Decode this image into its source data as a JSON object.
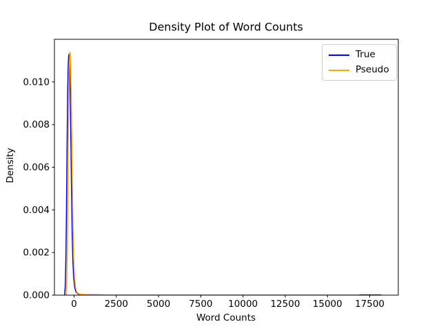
{
  "figure": {
    "background": "#ffffff",
    "axis_color": "#000000",
    "text_color": "#000000"
  },
  "chart_data": {
    "type": "line",
    "title": "Density Plot of Word Counts",
    "xlabel": "Word Counts",
    "ylabel": "Density",
    "xlim": [
      -1160,
      19190
    ],
    "ylim": [
      0,
      0.012
    ],
    "grid": false,
    "legend": {
      "position": "upper right",
      "border_color": "#cccccc",
      "background": "#ffffff",
      "entries": [
        "True",
        "Pseudo"
      ]
    },
    "xticks": {
      "values": [
        0,
        2500,
        5000,
        7500,
        10000,
        12500,
        15000,
        17500
      ],
      "labels": [
        "0",
        "2500",
        "5000",
        "7500",
        "10000",
        "12500",
        "15000",
        "17500"
      ]
    },
    "yticks": {
      "values": [
        0,
        0.002,
        0.004,
        0.006,
        0.008,
        0.01
      ],
      "labels": [
        "0.000",
        "0.002",
        "0.004",
        "0.006",
        "0.008",
        "0.010"
      ]
    },
    "series": [
      {
        "name": "True",
        "color": "#0000ff",
        "points": [
          [
            -560,
            1e-05
          ],
          [
            -520,
            0.0004
          ],
          [
            -485,
            0.0016
          ],
          [
            -450,
            0.0038
          ],
          [
            -415,
            0.0068
          ],
          [
            -380,
            0.0094
          ],
          [
            -350,
            0.0107
          ],
          [
            -320,
            0.0112
          ],
          [
            -295,
            0.0113
          ],
          [
            -270,
            0.0111
          ],
          [
            -245,
            0.0103
          ],
          [
            -215,
            0.0089
          ],
          [
            -180,
            0.0068
          ],
          [
            -145,
            0.0047
          ],
          [
            -110,
            0.0029
          ],
          [
            -70,
            0.0016
          ],
          [
            -20,
            0.0008
          ],
          [
            40,
            0.00035
          ],
          [
            120,
            0.00014
          ],
          [
            260,
            5e-05
          ],
          [
            660,
            2e-05
          ],
          [
            2000,
            1e-05
          ],
          [
            18170,
            1e-05
          ]
        ]
      },
      {
        "name": "Pseudo",
        "color": "#ffa500",
        "points": [
          [
            -470,
            1e-05
          ],
          [
            -435,
            0.0005
          ],
          [
            -400,
            0.002
          ],
          [
            -365,
            0.0047
          ],
          [
            -330,
            0.0078
          ],
          [
            -300,
            0.01
          ],
          [
            -270,
            0.011
          ],
          [
            -245,
            0.0114
          ],
          [
            -220,
            0.0113
          ],
          [
            -195,
            0.0106
          ],
          [
            -165,
            0.0093
          ],
          [
            -130,
            0.0072
          ],
          [
            -95,
            0.005
          ],
          [
            -60,
            0.0031
          ],
          [
            -20,
            0.0017
          ],
          [
            30,
            0.0008
          ],
          [
            90,
            0.00035
          ],
          [
            170,
            0.00013
          ],
          [
            320,
            5e-05
          ],
          [
            800,
            2e-05
          ],
          [
            2000,
            1e-05
          ],
          [
            16860,
            1e-05
          ]
        ]
      }
    ]
  }
}
